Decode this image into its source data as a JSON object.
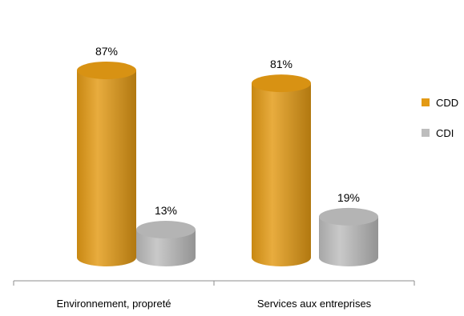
{
  "chart_data": {
    "type": "bar",
    "style": "3d-cylinder",
    "categories": [
      "Environnement, propreté",
      "Services aux entreprises"
    ],
    "series": [
      {
        "name": "CDD",
        "values": [
          87,
          81
        ],
        "color": "#E39A14"
      },
      {
        "name": "CDI",
        "values": [
          13,
          19
        ],
        "color": "#BDBDBD"
      }
    ],
    "value_suffix": "%",
    "ylim": [
      0,
      100
    ],
    "legend_position": "right",
    "grid": false
  }
}
